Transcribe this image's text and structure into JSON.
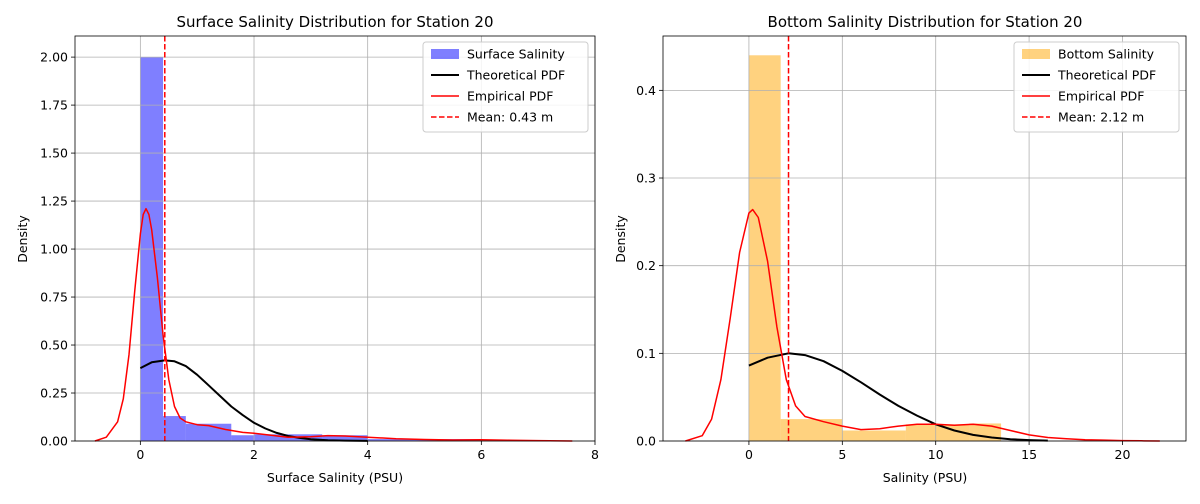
{
  "chart_data": [
    {
      "type": "bar",
      "title": "Surface Salinity Distribution for Station 20",
      "xlabel": "Surface Salinity (PSU)",
      "ylabel": "Density",
      "xlim": [
        -1.15,
        8.0
      ],
      "ylim": [
        0,
        2.11
      ],
      "xticks": [
        0,
        2,
        4,
        6,
        8
      ],
      "yticks": [
        0.0,
        0.25,
        0.5,
        0.75,
        1.0,
        1.25,
        1.5,
        1.75,
        2.0
      ],
      "ytick_decimals": 2,
      "grid": true,
      "legend_position": "upper-right",
      "histogram": {
        "name": "Surface Salinity",
        "color": "#0000ff",
        "alpha": 0.5,
        "bins": [
          {
            "x0": 0.0,
            "x1": 0.4,
            "density": 2.0
          },
          {
            "x0": 0.4,
            "x1": 0.8,
            "density": 0.13
          },
          {
            "x0": 0.8,
            "x1": 1.6,
            "density": 0.09
          },
          {
            "x0": 1.6,
            "x1": 2.0,
            "density": 0.03
          },
          {
            "x0": 2.0,
            "x1": 3.2,
            "density": 0.035
          },
          {
            "x0": 3.2,
            "x1": 4.0,
            "density": 0.03
          },
          {
            "x0": 4.0,
            "x1": 6.0,
            "density": 0.01
          }
        ]
      },
      "theoretical_pdf": {
        "name": "Theoretical PDF",
        "color": "#000000",
        "x": [
          0.0,
          0.2,
          0.43,
          0.6,
          0.8,
          1.0,
          1.2,
          1.4,
          1.6,
          1.8,
          2.0,
          2.2,
          2.4,
          2.6,
          2.8,
          3.0,
          3.3,
          3.6,
          4.0
        ],
        "y": [
          0.38,
          0.41,
          0.42,
          0.415,
          0.39,
          0.345,
          0.29,
          0.235,
          0.18,
          0.135,
          0.095,
          0.065,
          0.042,
          0.026,
          0.016,
          0.009,
          0.004,
          0.002,
          0.0005
        ]
      },
      "empirical_pdf": {
        "name": "Empirical PDF",
        "color": "#ff0000",
        "x": [
          -0.8,
          -0.6,
          -0.4,
          -0.3,
          -0.2,
          -0.1,
          0.0,
          0.05,
          0.1,
          0.15,
          0.2,
          0.3,
          0.4,
          0.5,
          0.6,
          0.7,
          0.8,
          1.0,
          1.2,
          1.5,
          1.8,
          2.0,
          2.3,
          2.6,
          3.0,
          3.3,
          3.6,
          4.0,
          4.5,
          5.0,
          5.5,
          6.0,
          6.5,
          7.0,
          7.6
        ],
        "y": [
          0.0,
          0.02,
          0.1,
          0.22,
          0.45,
          0.78,
          1.08,
          1.18,
          1.21,
          1.18,
          1.1,
          0.85,
          0.55,
          0.32,
          0.18,
          0.12,
          0.1,
          0.085,
          0.08,
          0.06,
          0.045,
          0.04,
          0.03,
          0.02,
          0.022,
          0.028,
          0.026,
          0.02,
          0.012,
          0.008,
          0.005,
          0.006,
          0.004,
          0.002,
          0.0
        ]
      },
      "mean_line": {
        "name": "Mean: 0.43 m",
        "value": 0.43,
        "color": "#ff0000"
      }
    },
    {
      "type": "bar",
      "title": "Bottom Salinity Distribution for Station 20",
      "xlabel": "Salinity (PSU)",
      "ylabel": "Density",
      "xlim": [
        -4.6,
        23.4
      ],
      "ylim": [
        0,
        0.462
      ],
      "xticks": [
        0,
        5,
        10,
        15,
        20
      ],
      "yticks": [
        0.0,
        0.1,
        0.2,
        0.3,
        0.4
      ],
      "ytick_decimals": 1,
      "grid": true,
      "legend_position": "upper-right",
      "histogram": {
        "name": "Bottom Salinity",
        "color": "#ffa500",
        "alpha": 0.5,
        "bins": [
          {
            "x0": 0.0,
            "x1": 1.7,
            "density": 0.44
          },
          {
            "x0": 1.7,
            "x1": 5.0,
            "density": 0.025
          },
          {
            "x0": 5.0,
            "x1": 8.4,
            "density": 0.012
          },
          {
            "x0": 8.4,
            "x1": 11.8,
            "density": 0.019
          },
          {
            "x0": 11.8,
            "x1": 13.5,
            "density": 0.02
          }
        ]
      },
      "theoretical_pdf": {
        "name": "Theoretical PDF",
        "color": "#000000",
        "x": [
          0.0,
          1.0,
          2.12,
          3.0,
          4.0,
          5.0,
          6.0,
          7.0,
          8.0,
          9.0,
          10.0,
          11.0,
          12.0,
          13.0,
          14.0,
          15.0,
          16.0
        ],
        "y": [
          0.086,
          0.095,
          0.1,
          0.098,
          0.091,
          0.08,
          0.067,
          0.053,
          0.04,
          0.029,
          0.019,
          0.012,
          0.007,
          0.004,
          0.002,
          0.001,
          0.0005
        ]
      },
      "empirical_pdf": {
        "name": "Empirical PDF",
        "color": "#ff0000",
        "x": [
          -3.4,
          -2.5,
          -2.0,
          -1.5,
          -1.0,
          -0.5,
          0.0,
          0.2,
          0.5,
          1.0,
          1.5,
          2.0,
          2.5,
          3.0,
          4.0,
          5.0,
          6.0,
          7.0,
          8.0,
          9.0,
          10.0,
          11.0,
          12.0,
          13.0,
          14.0,
          15.0,
          16.0,
          17.0,
          18.0,
          19.0,
          20.0,
          21.0,
          22.0
        ],
        "y": [
          0.0,
          0.006,
          0.025,
          0.07,
          0.14,
          0.215,
          0.26,
          0.264,
          0.255,
          0.205,
          0.13,
          0.07,
          0.04,
          0.028,
          0.022,
          0.017,
          0.013,
          0.014,
          0.017,
          0.019,
          0.019,
          0.018,
          0.019,
          0.017,
          0.012,
          0.007,
          0.004,
          0.0025,
          0.0015,
          0.001,
          0.0005,
          0.0002,
          0.0
        ]
      },
      "mean_line": {
        "name": "Mean: 2.12 m",
        "value": 2.12,
        "color": "#ff0000"
      }
    }
  ]
}
